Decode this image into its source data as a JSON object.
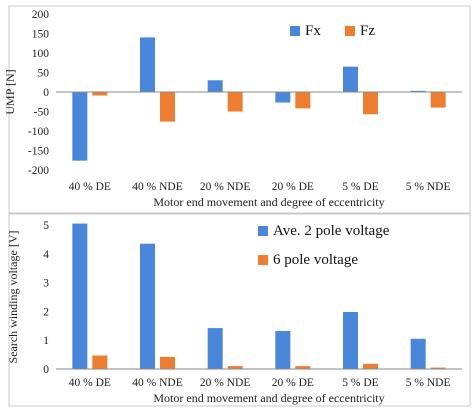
{
  "chart_data": [
    {
      "type": "bar",
      "categories": [
        "40 % DE",
        "40 % NDE",
        "20 % NDE",
        "20 % DE",
        "5 % DE",
        "5 % NDE"
      ],
      "series": [
        {
          "name": "Fx",
          "values": [
            -176,
            140,
            30,
            -27,
            65,
            3
          ],
          "color": "#4A86D9"
        },
        {
          "name": "Fz",
          "values": [
            -9,
            -76,
            -50,
            -42,
            -57,
            -40
          ],
          "color": "#ED7D31"
        }
      ],
      "xlabel": "Motor end movement and degree of eccentricity",
      "ylabel": "UMP [N]",
      "ylim": [
        -200,
        200
      ],
      "yticks": [
        -200,
        -150,
        -100,
        -50,
        0,
        50,
        100,
        150,
        200
      ],
      "grid": false,
      "legend": "top-right"
    },
    {
      "type": "bar",
      "categories": [
        "40 % DE",
        "40 % NDE",
        "20 % NDE",
        "20 % DE",
        "5 % DE",
        "5 % NDE"
      ],
      "series": [
        {
          "name": "Ave. 2 pole voltage",
          "values": [
            5.05,
            4.35,
            1.42,
            1.32,
            1.98,
            1.05
          ],
          "color": "#4A86D9"
        },
        {
          "name": "6 pole voltage",
          "values": [
            0.47,
            0.42,
            0.1,
            0.1,
            0.18,
            0.05
          ],
          "color": "#ED7D31"
        }
      ],
      "xlabel": "Motor end movement and degree of eccentricity",
      "ylabel": "Search winding voltage [V]",
      "ylim": [
        0,
        5
      ],
      "yticks": [
        0,
        1,
        2,
        3,
        4,
        5
      ],
      "grid": false,
      "legend": "top-right"
    }
  ]
}
